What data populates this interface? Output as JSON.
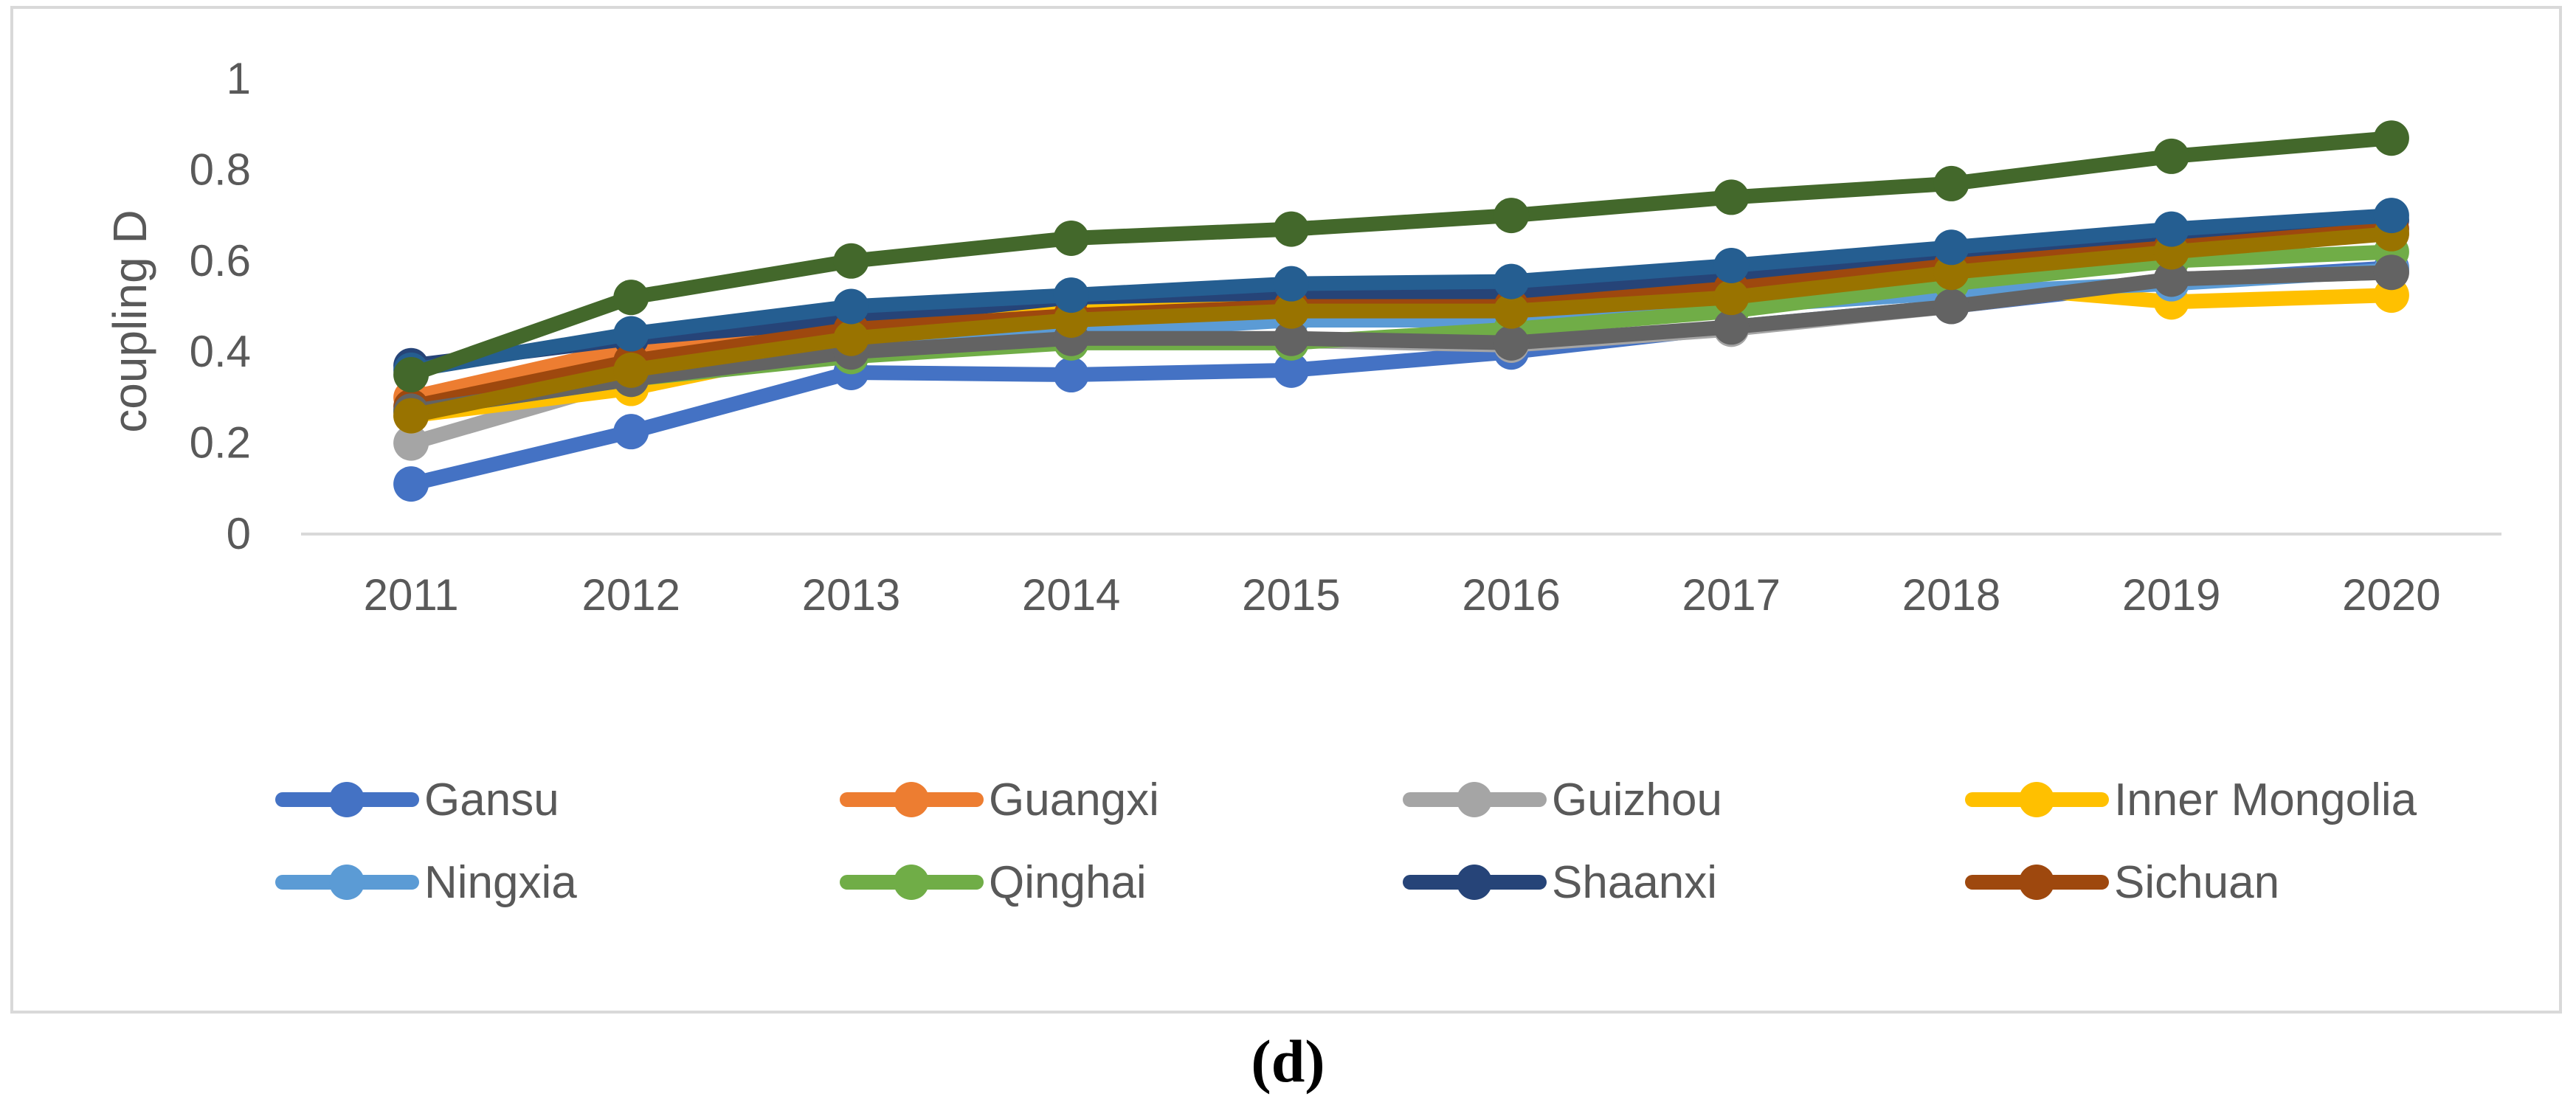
{
  "chart_data": {
    "type": "line",
    "title": "",
    "xlabel": "",
    "ylabel": "coupling D",
    "ylim": [
      0,
      1
    ],
    "yticks": [
      "0",
      "0.2",
      "0.4",
      "0.6",
      "0.8",
      "1"
    ],
    "grid": false,
    "legend_position": "bottom",
    "categories": [
      "2011",
      "2012",
      "2013",
      "2014",
      "2015",
      "2016",
      "2017",
      "2018",
      "2019",
      "2020"
    ],
    "series": [
      {
        "name": "Gansu",
        "color": "#4472c4",
        "values": [
          0.11,
          0.225,
          0.355,
          0.35,
          0.36,
          0.4,
          0.455,
          0.5,
          0.555,
          0.585
        ]
      },
      {
        "name": "Guangxi",
        "color": "#ed7d31",
        "values": [
          0.3,
          0.41,
          0.455,
          0.49,
          0.51,
          0.5,
          0.55,
          0.6,
          0.63,
          0.66
        ]
      },
      {
        "name": "Guizhou",
        "color": "#a5a5a5",
        "values": [
          0.2,
          0.34,
          0.4,
          0.43,
          0.425,
          0.415,
          0.45,
          0.5,
          0.56,
          0.575
        ]
      },
      {
        "name": "Inner Mongolia",
        "color": "#ffc000",
        "values": [
          0.26,
          0.32,
          0.42,
          0.51,
          0.49,
          0.48,
          0.53,
          0.55,
          0.51,
          0.525
        ]
      },
      {
        "name": "Ningxia",
        "color": "#5b9bd5",
        "values": [
          0.27,
          0.35,
          0.43,
          0.44,
          0.47,
          0.47,
          0.5,
          0.53,
          0.55,
          0.58
        ]
      },
      {
        "name": "Qinghai",
        "color": "#70ad47",
        "values": [
          0.27,
          0.34,
          0.39,
          0.42,
          0.42,
          0.45,
          0.49,
          0.55,
          0.6,
          0.62
        ]
      },
      {
        "name": "Shaanxi",
        "color": "#264478",
        "values": [
          0.37,
          0.43,
          0.47,
          0.52,
          0.53,
          0.53,
          0.57,
          0.61,
          0.655,
          0.69
        ]
      },
      {
        "name": "Sichuan",
        "color": "#9e480e",
        "values": [
          0.28,
          0.38,
          0.45,
          0.48,
          0.5,
          0.5,
          0.54,
          0.59,
          0.63,
          0.67
        ]
      },
      {
        "name": "",
        "color": "#636363",
        "values": [
          0.27,
          0.34,
          0.4,
          0.43,
          0.43,
          0.42,
          0.455,
          0.5,
          0.56,
          0.575
        ]
      },
      {
        "name": "",
        "color": "#997300",
        "values": [
          0.26,
          0.36,
          0.43,
          0.47,
          0.49,
          0.49,
          0.52,
          0.575,
          0.62,
          0.66
        ]
      },
      {
        "name": "",
        "color": "#255e91",
        "values": [
          0.36,
          0.44,
          0.5,
          0.525,
          0.55,
          0.555,
          0.59,
          0.63,
          0.67,
          0.7
        ]
      },
      {
        "name": "",
        "color": "#43682b",
        "values": [
          0.35,
          0.52,
          0.6,
          0.65,
          0.67,
          0.7,
          0.74,
          0.77,
          0.83,
          0.87
        ]
      }
    ]
  },
  "panel_label": "(d)"
}
